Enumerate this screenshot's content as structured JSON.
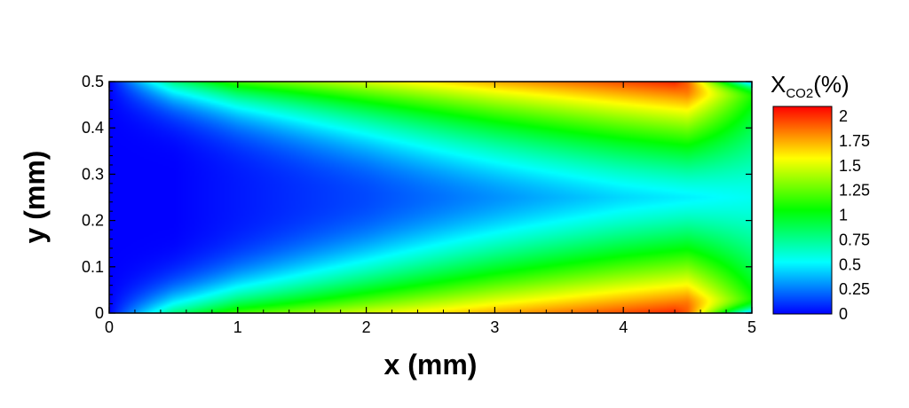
{
  "chart_data": {
    "type": "heatmap",
    "xlabel": "x (mm)",
    "ylabel": "y (mm)",
    "xlim": [
      0,
      5
    ],
    "ylim": [
      0,
      0.5
    ],
    "x_ticks": [
      "0",
      "1",
      "2",
      "3",
      "4",
      "5"
    ],
    "y_ticks": [
      "0",
      "0.1",
      "0.2",
      "0.3",
      "0.4",
      "0.5"
    ],
    "colorbar": {
      "title_main": "X",
      "title_sub": "CO2",
      "title_unit": "(%)",
      "range": [
        0,
        2.1
      ],
      "labels": [
        "0",
        "0.25",
        "0.5",
        "0.75",
        "1",
        "1.25",
        "1.5",
        "1.75",
        "2"
      ],
      "label_values": [
        0,
        0.25,
        0.5,
        0.75,
        1,
        1.25,
        1.5,
        1.75,
        2
      ],
      "colormap": [
        "#0000ff",
        "#00ffff",
        "#00ff00",
        "#ffff00",
        "#ff0000"
      ]
    },
    "field_description_values": {
      "x_samples": [
        0,
        0.5,
        1,
        2,
        3,
        4,
        4.5,
        5
      ],
      "wall_value": [
        0.0,
        0.8,
        1.2,
        1.5,
        1.75,
        1.95,
        2.05,
        1.2
      ],
      "center_value": [
        0.0,
        0.0,
        0.05,
        0.15,
        0.3,
        0.45,
        0.5,
        0.55
      ]
    }
  }
}
